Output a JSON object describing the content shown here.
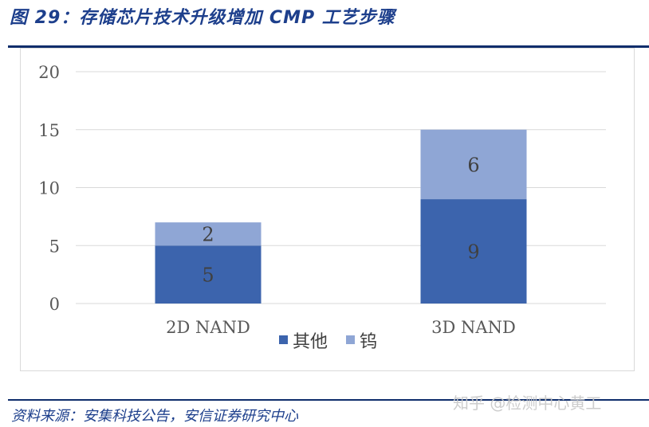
{
  "title": "图 29：存储芯片技术升级增加 CMP 工艺步骤",
  "source": "资料来源：安集科技公告，安信证券研究中心",
  "watermark": "知乎 @检测中心黄工",
  "colors": {
    "other": "#3c64ad",
    "tungsten": "#8fa6d5",
    "title": "#1d3f8c"
  },
  "chart_data": {
    "type": "bar",
    "stacked": true,
    "categories": [
      "2D NAND",
      "3D NAND"
    ],
    "series": [
      {
        "name": "其他",
        "values": [
          5,
          9
        ]
      },
      {
        "name": "钨",
        "values": [
          2,
          6
        ]
      }
    ],
    "ylim": [
      0,
      20
    ],
    "yticks": [
      "0",
      "5",
      "10",
      "15",
      "20"
    ],
    "grid": true,
    "legend": "bottom"
  }
}
